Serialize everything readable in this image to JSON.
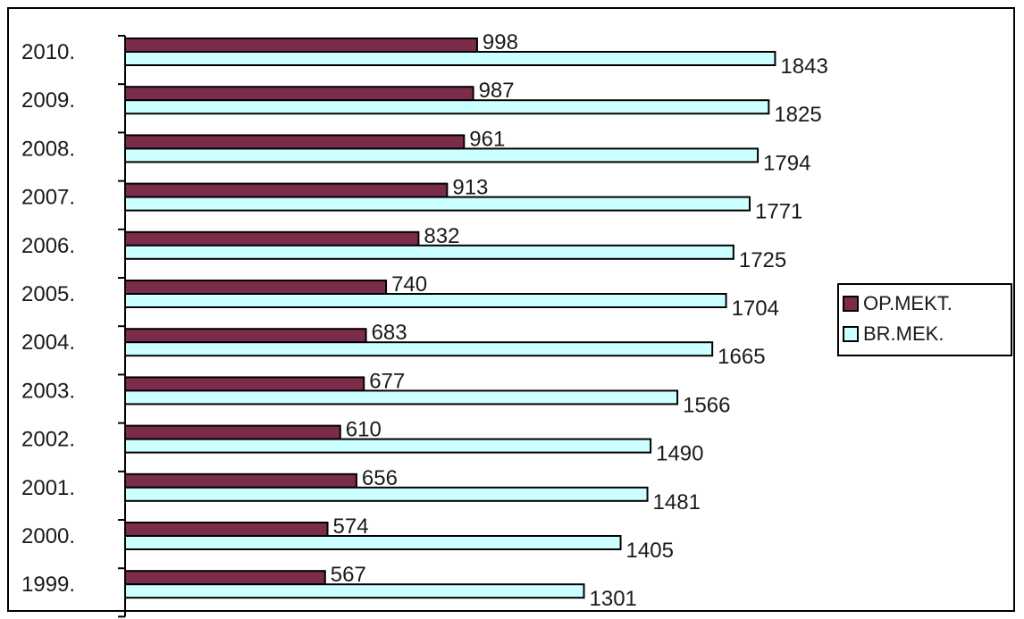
{
  "chart_data": {
    "type": "bar",
    "orientation": "horizontal",
    "categories": [
      "2010.",
      "2009.",
      "2008.",
      "2007.",
      "2006.",
      "2005.",
      "2004.",
      "2003.",
      "2002.",
      "2001.",
      "2000.",
      "1999."
    ],
    "series": [
      {
        "name": "OP.MEKT.",
        "color": "#7b2c4a",
        "values": [
          998,
          987,
          961,
          913,
          832,
          740,
          683,
          677,
          610,
          656,
          574,
          567
        ]
      },
      {
        "name": "BR.MEK.",
        "color": "#ccffff",
        "values": [
          1843,
          1825,
          1794,
          1771,
          1725,
          1704,
          1665,
          1566,
          1490,
          1481,
          1405,
          1301
        ]
      }
    ],
    "title": "",
    "xlabel": "",
    "ylabel": "",
    "grid": false,
    "legend_position": "right"
  }
}
